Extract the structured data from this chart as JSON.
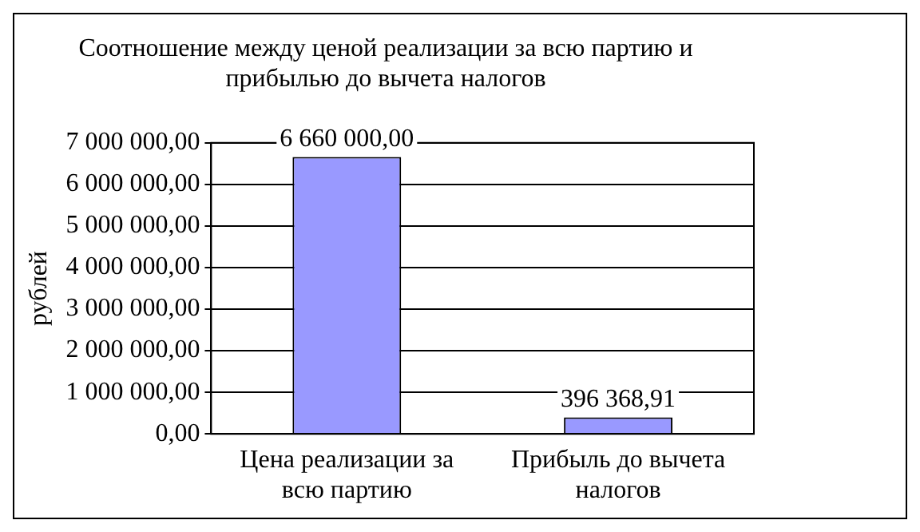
{
  "chart_data": {
    "type": "bar",
    "title": "Соотношение между ценой реализации за всю партию и прибылью до вычета налогов",
    "ylabel": "рублей",
    "categories": [
      "Цена реализации за всю партию",
      "Прибыль до вычета налогов"
    ],
    "series": [
      {
        "color": "#9999ff",
        "values": [
          6660000,
          396368.91
        ],
        "value_labels": [
          "6 660 000,00",
          "396 368,91"
        ]
      }
    ],
    "ylim": [
      0,
      7000000
    ],
    "yticks": [
      {
        "value": 0,
        "label": "0,00"
      },
      {
        "value": 1000000,
        "label": "1 000 000,00"
      },
      {
        "value": 2000000,
        "label": "2 000 000,00"
      },
      {
        "value": 3000000,
        "label": "3 000 000,00"
      },
      {
        "value": 4000000,
        "label": "4 000 000,00"
      },
      {
        "value": 5000000,
        "label": "5 000 000,00"
      },
      {
        "value": 6000000,
        "label": "6 000 000,00"
      },
      {
        "value": 7000000,
        "label": "7 000 000,00"
      }
    ],
    "grid": "y",
    "legend": false
  }
}
